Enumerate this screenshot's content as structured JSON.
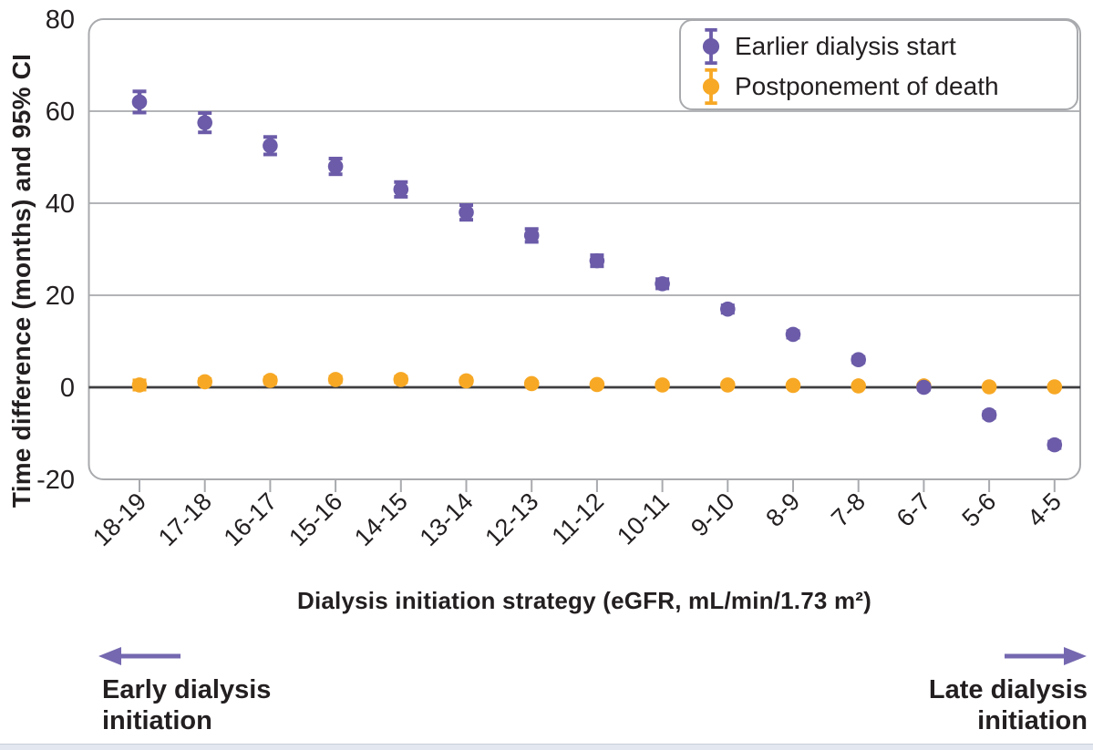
{
  "chart_data": {
    "type": "scatter",
    "title": "",
    "xlabel": "Dialysis initiation strategy (eGFR, mL/min/1.73 m²)",
    "ylabel": "Time difference (months) and 95% CI",
    "ylim": [
      -20,
      80
    ],
    "y_ticks": [
      80,
      60,
      40,
      20,
      0,
      -20
    ],
    "grid": true,
    "zero_line": true,
    "legend_position": "top-right",
    "categories": [
      "18-19",
      "17-18",
      "16-17",
      "15-16",
      "14-15",
      "13-14",
      "12-13",
      "11-12",
      "10-11",
      "9-10",
      "8-9",
      "7-8",
      "6-7",
      "5-6",
      "4-5"
    ],
    "series": [
      {
        "name": "Earlier dialysis start",
        "color": "#6b5ba8",
        "values": [
          62,
          57.5,
          52.5,
          48,
          43,
          38,
          33,
          27.5,
          22.5,
          17,
          11.5,
          6,
          0,
          -6,
          -12.5
        ],
        "ci_half": [
          2.3,
          2.1,
          1.9,
          1.7,
          1.6,
          1.6,
          1.4,
          1.2,
          1.0,
          0.8,
          0.7,
          0.6,
          0.5,
          0.6,
          0.7
        ]
      },
      {
        "name": "Postponement of death",
        "color": "#f7a824",
        "values": [
          0.5,
          1.2,
          1.5,
          1.7,
          1.7,
          1.4,
          0.8,
          0.6,
          0.5,
          0.5,
          0.4,
          0.3,
          0.3,
          0.1,
          0.1
        ],
        "ci_half": [
          1.0,
          0.6,
          0.6,
          0.6,
          0.6,
          0.5,
          0.4,
          0.4,
          0.4,
          0.4,
          0.3,
          0.3,
          0.3,
          0.3,
          0.3
        ]
      }
    ]
  },
  "annotations": {
    "left_label": "Early dialysis initiation",
    "right_label": "Late dialysis initiation"
  },
  "colors": {
    "background": "#ffffff",
    "frame": "#a8aaad",
    "grid": "#a8aaad",
    "zero_line": "#3e3e40",
    "text": "#231f20",
    "arrow": "#7568b0",
    "bottom_bar": "#e2e7f0"
  }
}
